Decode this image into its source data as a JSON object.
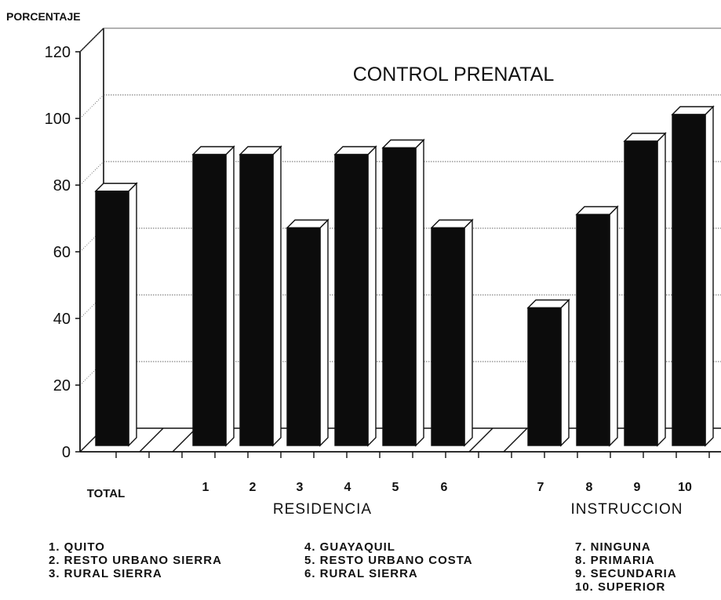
{
  "chart_data": {
    "type": "bar",
    "title": "CONTROL PRENATAL",
    "ylabel": "PORCENTAJE",
    "ylim": [
      0,
      120
    ],
    "yticks": [
      "0",
      "20",
      "40",
      "60",
      "80",
      "100",
      "120"
    ],
    "grid": true,
    "categories": [
      "TOTAL",
      "1",
      "2",
      "3",
      "4",
      "5",
      "6",
      "7",
      "8",
      "9",
      "10"
    ],
    "values": [
      77,
      88,
      88,
      66,
      88,
      90,
      66,
      42,
      70,
      92,
      100
    ],
    "groups": [
      {
        "label": "RESIDENCIA",
        "categories": [
          "1",
          "2",
          "3",
          "4",
          "5",
          "6"
        ]
      },
      {
        "label": "INSTRUCCION",
        "categories": [
          "7",
          "8",
          "9",
          "10"
        ]
      }
    ],
    "legend": {
      "residencia_a": [
        "1. QUITO",
        "2. RESTO URBANO SIERRA",
        "3. RURAL SIERRA"
      ],
      "residencia_b": [
        "4. GUAYAQUIL",
        "5. RESTO URBANO COSTA",
        "6. RURAL SIERRA"
      ],
      "instruccion": [
        "7. NINGUNA",
        "8. PRIMARIA",
        "9. SECUNDARIA",
        "10. SUPERIOR"
      ]
    }
  }
}
